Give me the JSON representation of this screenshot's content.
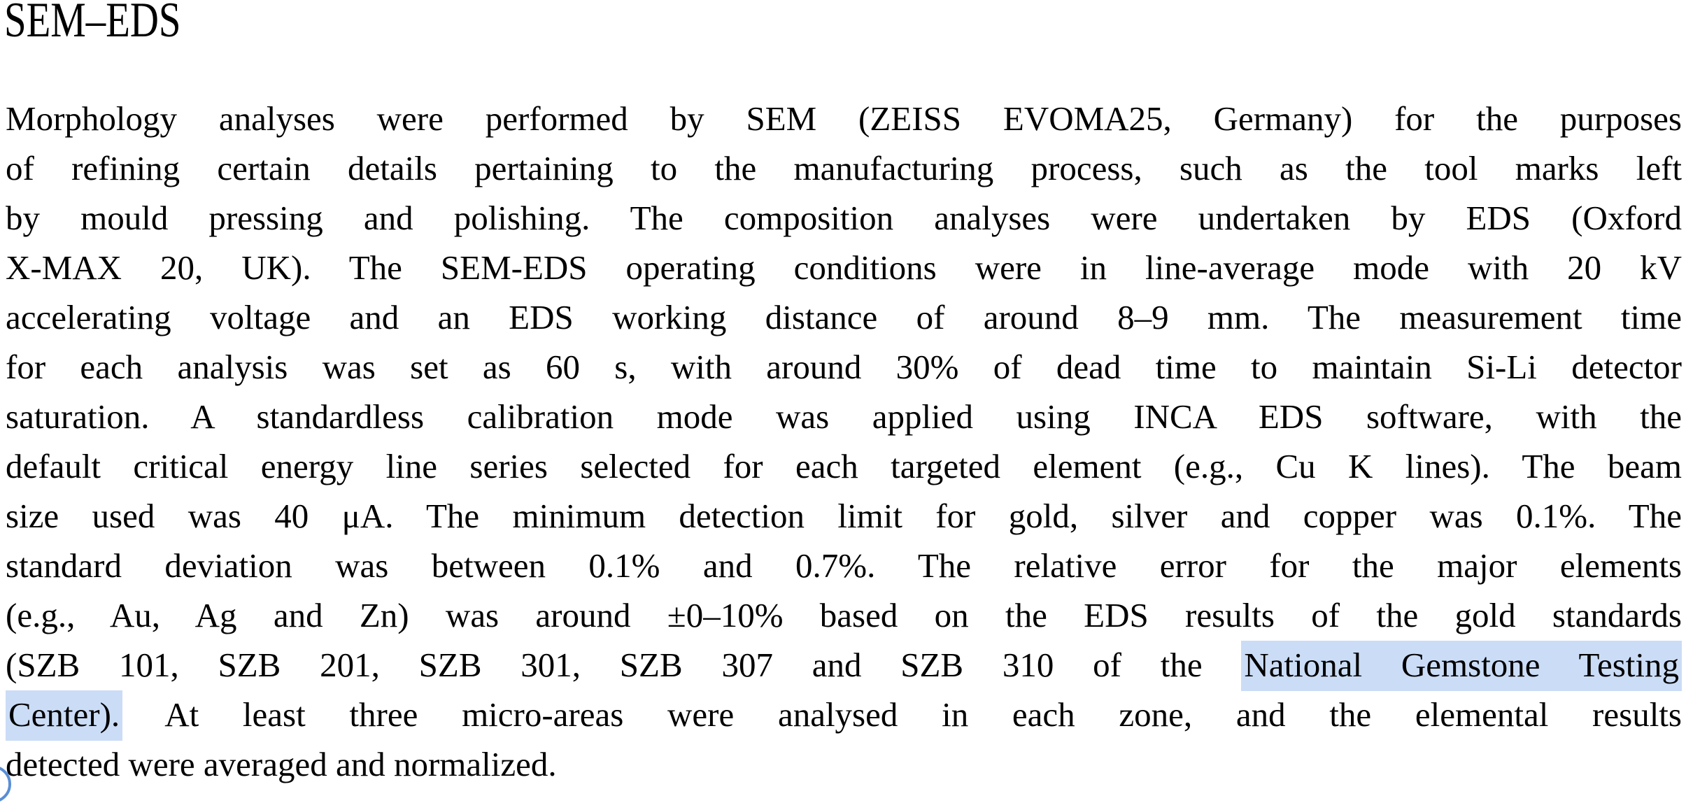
{
  "page": {
    "background": "#ffffff",
    "text_color": "#000000"
  },
  "heading": {
    "title": "SEM–EDS"
  },
  "paragraph": {
    "lines": [
      {
        "segments": [
          {
            "t": "Morphology analyses were performed by SEM (ZEISS EVOMA25, Germany) for the purposes",
            "h": false
          }
        ]
      },
      {
        "segments": [
          {
            "t": "of refining certain details pertaining to the manufacturing process, such as the tool marks left",
            "h": false
          }
        ]
      },
      {
        "segments": [
          {
            "t": "by mould pressing and polishing. The composition analyses were undertaken by EDS (Oxford",
            "h": false
          }
        ]
      },
      {
        "segments": [
          {
            "t": "X-MAX 20, UK). The SEM-EDS operating conditions were in line-average mode with 20 kV",
            "h": false
          }
        ]
      },
      {
        "segments": [
          {
            "t": "accelerating voltage and an EDS working distance of around 8–9 mm. The measurement time",
            "h": false
          }
        ]
      },
      {
        "segments": [
          {
            "t": "for each analysis was set as 60 s, with around 30% of dead time to maintain Si-Li detector",
            "h": false
          }
        ]
      },
      {
        "segments": [
          {
            "t": "saturation. A standardless calibration mode was applied using INCA EDS software, with the",
            "h": false
          }
        ]
      },
      {
        "segments": [
          {
            "t": "default critical energy line series selected for each targeted element (e.g., Cu K lines). The beam",
            "h": false
          }
        ]
      },
      {
        "segments": [
          {
            "t": "size used was 40 μA. The minimum detection limit for gold, silver and copper was 0.1%. The",
            "h": false
          }
        ]
      },
      {
        "segments": [
          {
            "t": "standard deviation was between 0.1% and 0.7%. The relative error for the major elements",
            "h": false
          }
        ]
      },
      {
        "segments": [
          {
            "t": "(e.g., Au, Ag and Zn) was around ±0–10% based on the EDS results of the gold standards",
            "h": false
          }
        ]
      },
      {
        "segments": [
          {
            "t": "(SZB 101, SZB 201, SZB 301, SZB 307 and SZB 310 of the ",
            "h": false
          },
          {
            "t": "National Gemstone Testing",
            "h": true
          }
        ]
      },
      {
        "segments": [
          {
            "t": "Center).",
            "h": true
          },
          {
            "t": " At least three micro-areas were analysed in each zone, and the elemental results",
            "h": false
          }
        ]
      },
      {
        "segments": [
          {
            "t": "detected were averaged and normalized.",
            "h": false
          }
        ]
      }
    ]
  },
  "selection": {
    "highlight_color": "#cbdcf6",
    "handle_color": "#5a8ed5"
  }
}
